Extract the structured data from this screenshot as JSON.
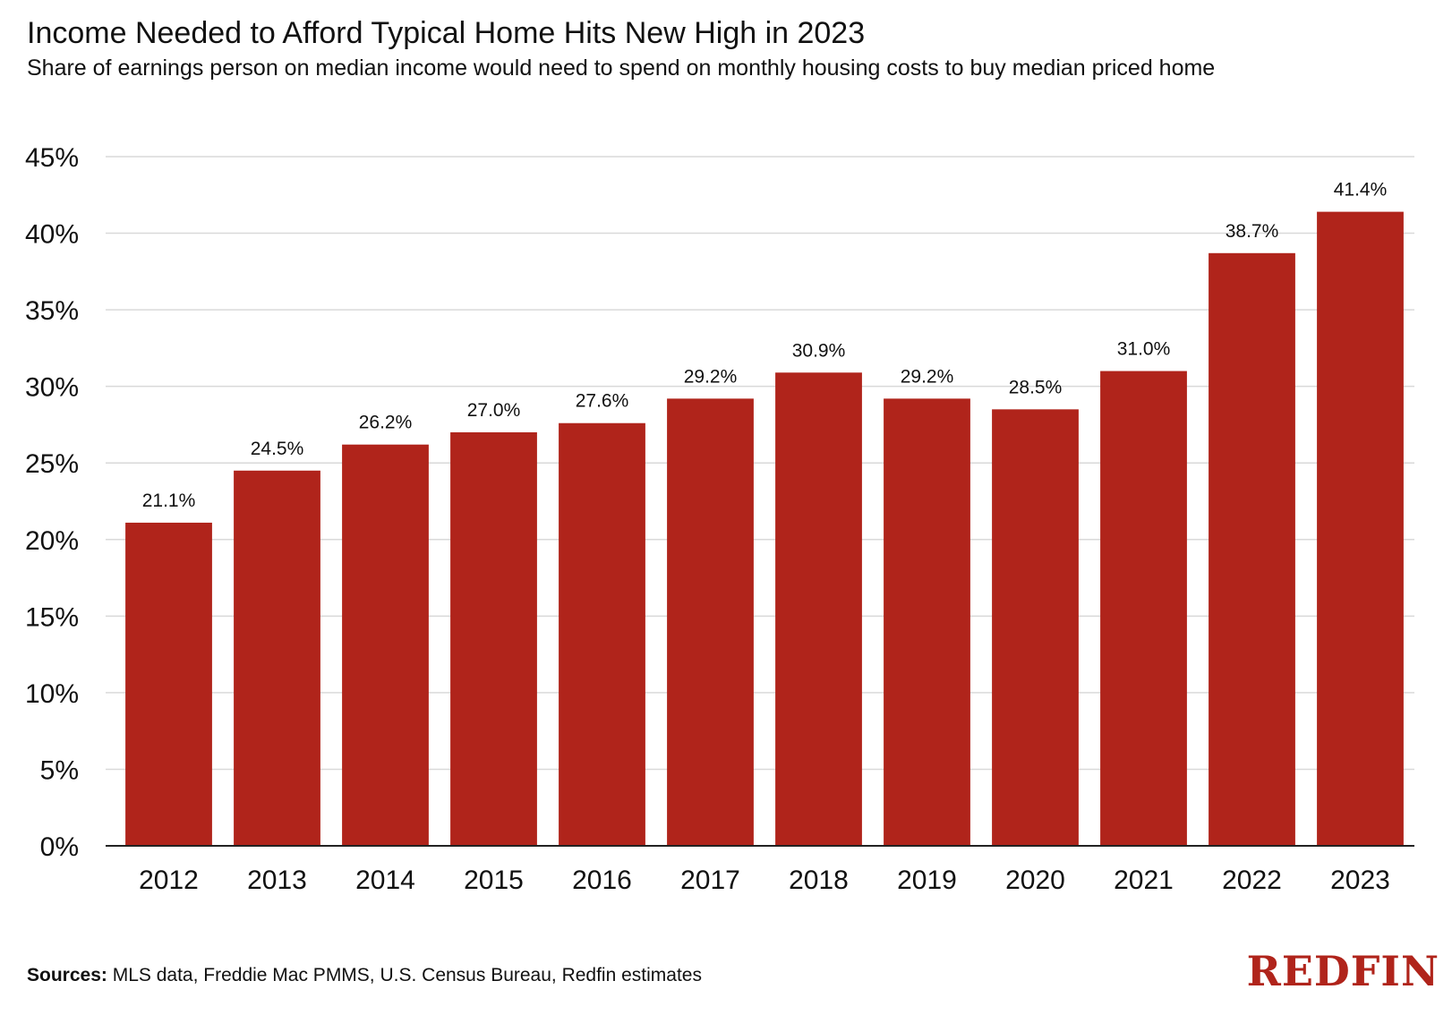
{
  "header": {
    "title": "Income Needed to Afford Typical Home Hits New High in 2023",
    "subtitle": "Share of earnings person on median income would need to spend on monthly housing costs to buy median priced home"
  },
  "footer": {
    "sources_label": "Sources:",
    "sources_text": " MLS data, Freddie Mac PMMS, U.S. Census Bureau, Redfin estimates",
    "brand": "REDFIN"
  },
  "colors": {
    "bar": "#b0241b",
    "grid": "#d9d9d9",
    "axis": "#222222"
  },
  "chart_data": {
    "type": "bar",
    "title": "Income Needed to Afford Typical Home Hits New High in 2023",
    "subtitle": "Share of earnings person on median income would need to spend on monthly housing costs to buy median priced home",
    "xlabel": "",
    "ylabel": "",
    "categories": [
      "2012",
      "2013",
      "2014",
      "2015",
      "2016",
      "2017",
      "2018",
      "2019",
      "2020",
      "2021",
      "2022",
      "2023"
    ],
    "values": [
      21.1,
      24.5,
      26.2,
      27.0,
      27.6,
      29.2,
      30.9,
      29.2,
      28.5,
      31.0,
      38.7,
      41.4
    ],
    "data_labels": [
      "21.1%",
      "24.5%",
      "26.2%",
      "27.0%",
      "27.6%",
      "29.2%",
      "30.9%",
      "29.2%",
      "28.5%",
      "31.0%",
      "38.7%",
      "41.4%"
    ],
    "yticks": [
      0,
      5,
      10,
      15,
      20,
      25,
      30,
      35,
      40,
      45
    ],
    "ytick_labels": [
      "0%",
      "5%",
      "10%",
      "15%",
      "20%",
      "25%",
      "30%",
      "35%",
      "40%",
      "45%"
    ],
    "ylim": [
      0,
      45
    ],
    "grid": true,
    "legend": "none"
  }
}
